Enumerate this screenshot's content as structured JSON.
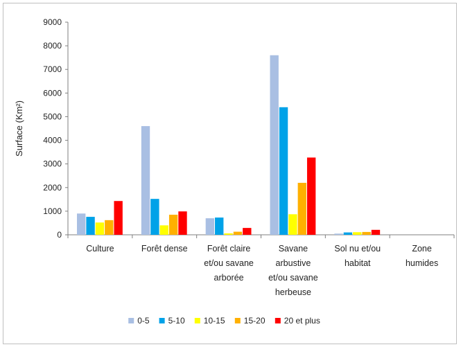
{
  "chart_data": {
    "type": "bar",
    "ylabel": "Surface (Km²)",
    "ylim": [
      0,
      9000
    ],
    "yticks": [
      0,
      1000,
      2000,
      3000,
      4000,
      5000,
      6000,
      7000,
      8000,
      9000
    ],
    "grid": false,
    "legend_position": "bottom",
    "categories": [
      [
        "Culture"
      ],
      [
        "Forêt dense"
      ],
      [
        "Forêt claire",
        "et/ou savane",
        "arborée"
      ],
      [
        "Savane",
        "arbustive",
        "et/ou savane",
        "herbeuse"
      ],
      [
        "Sol nu et/ou",
        "habitat"
      ],
      [
        "Zone",
        "humides"
      ]
    ],
    "series": [
      {
        "name": "0-5",
        "color": "#a9bfe3",
        "values": [
          900,
          4600,
          700,
          7600,
          50,
          0
        ]
      },
      {
        "name": "5-10",
        "color": "#00a2e8",
        "values": [
          760,
          1520,
          730,
          5400,
          100,
          0
        ]
      },
      {
        "name": "10-15",
        "color": "#ffff00",
        "values": [
          520,
          400,
          60,
          870,
          110,
          0
        ]
      },
      {
        "name": "15-20",
        "color": "#ffb000",
        "values": [
          620,
          850,
          130,
          2200,
          120,
          0
        ]
      },
      {
        "name": "20 et plus",
        "color": "#ff0000",
        "values": [
          1430,
          990,
          290,
          3270,
          210,
          0
        ]
      }
    ]
  }
}
